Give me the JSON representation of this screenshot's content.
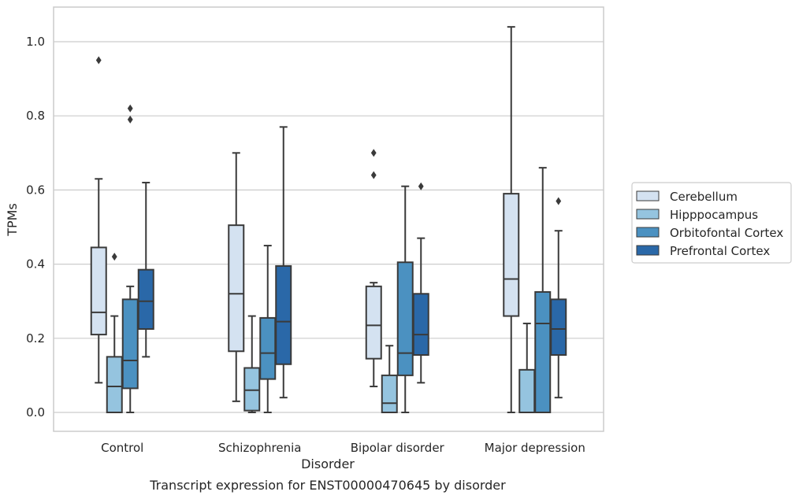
{
  "chart_data": {
    "type": "box",
    "xlabel": "Disorder",
    "ylabel": "TPMs",
    "caption": "Transcript expression for ENST00000470645 by disorder",
    "ylim": [
      -0.05,
      1.09
    ],
    "yticks": [
      "0.0",
      "0.2",
      "0.4",
      "0.6",
      "0.8",
      "1.0"
    ],
    "ytick_values": [
      0,
      0.2,
      0.4,
      0.6,
      0.8,
      1.0
    ],
    "grid": "horizontal",
    "legend_position": "right",
    "categories": [
      "Control",
      "Schizophrenia",
      "Bipolar disorder",
      "Major depression"
    ],
    "series": [
      {
        "name": "Cerebellum",
        "color": "#d4e2f1",
        "boxes": [
          {
            "whisker_low": 0.08,
            "q1": 0.21,
            "median": 0.27,
            "q3": 0.445,
            "whisker_high": 0.63,
            "outliers": [
              0.95
            ]
          },
          {
            "whisker_low": 0.03,
            "q1": 0.165,
            "median": 0.32,
            "q3": 0.505,
            "whisker_high": 0.7,
            "outliers": []
          },
          {
            "whisker_low": 0.07,
            "q1": 0.145,
            "median": 0.235,
            "q3": 0.34,
            "whisker_high": 0.35,
            "outliers": [
              0.64,
              0.7
            ]
          },
          {
            "whisker_low": 0.0,
            "q1": 0.26,
            "median": 0.36,
            "q3": 0.59,
            "whisker_high": 1.04,
            "outliers": []
          }
        ]
      },
      {
        "name": "Hipppocampus",
        "color": "#95c4df",
        "boxes": [
          {
            "whisker_low": 0.0,
            "q1": 0.0,
            "median": 0.07,
            "q3": 0.15,
            "whisker_high": 0.26,
            "outliers": [
              0.42
            ]
          },
          {
            "whisker_low": 0.0,
            "q1": 0.005,
            "median": 0.06,
            "q3": 0.12,
            "whisker_high": 0.26,
            "outliers": []
          },
          {
            "whisker_low": 0.0,
            "q1": 0.0,
            "median": 0.025,
            "q3": 0.1,
            "whisker_high": 0.18,
            "outliers": []
          },
          {
            "whisker_low": 0.0,
            "q1": 0.0,
            "median": 0.0,
            "q3": 0.115,
            "whisker_high": 0.24,
            "outliers": []
          }
        ]
      },
      {
        "name": "Orbitofontal Cortex",
        "color": "#4b91c1",
        "boxes": [
          {
            "whisker_low": 0.0,
            "q1": 0.065,
            "median": 0.14,
            "q3": 0.305,
            "whisker_high": 0.34,
            "outliers": [
              0.79,
              0.82
            ]
          },
          {
            "whisker_low": 0.0,
            "q1": 0.09,
            "median": 0.16,
            "q3": 0.255,
            "whisker_high": 0.45,
            "outliers": []
          },
          {
            "whisker_low": 0.0,
            "q1": 0.1,
            "median": 0.16,
            "q3": 0.405,
            "whisker_high": 0.61,
            "outliers": []
          },
          {
            "whisker_low": 0.0,
            "q1": 0.0,
            "median": 0.24,
            "q3": 0.325,
            "whisker_high": 0.66,
            "outliers": []
          }
        ]
      },
      {
        "name": "Prefrontal Cortex",
        "color": "#2a68a8",
        "boxes": [
          {
            "whisker_low": 0.15,
            "q1": 0.225,
            "median": 0.3,
            "q3": 0.385,
            "whisker_high": 0.62,
            "outliers": []
          },
          {
            "whisker_low": 0.04,
            "q1": 0.13,
            "median": 0.245,
            "q3": 0.395,
            "whisker_high": 0.77,
            "outliers": []
          },
          {
            "whisker_low": 0.08,
            "q1": 0.155,
            "median": 0.21,
            "q3": 0.32,
            "whisker_high": 0.47,
            "outliers": [
              0.61
            ]
          },
          {
            "whisker_low": 0.04,
            "q1": 0.155,
            "median": 0.225,
            "q3": 0.305,
            "whisker_high": 0.49,
            "outliers": [
              0.57
            ]
          }
        ]
      }
    ]
  }
}
